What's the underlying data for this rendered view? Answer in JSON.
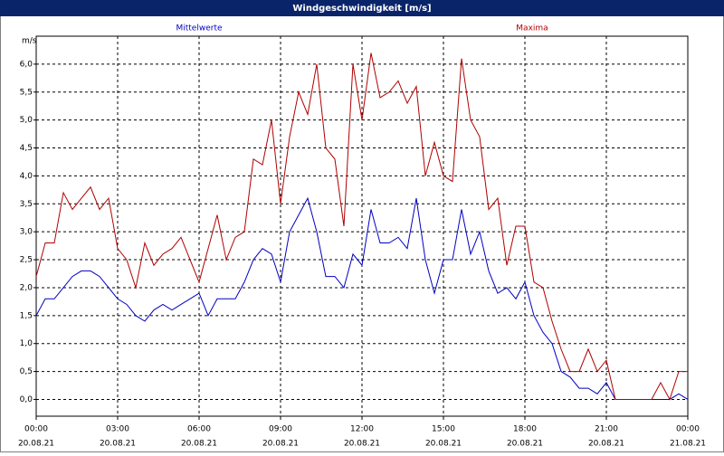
{
  "chart_data": {
    "type": "line",
    "title": "Windgeschwindigkeit [m/s]",
    "y_label": "m/s",
    "x": [
      0,
      20,
      40,
      60,
      80,
      100,
      120,
      140,
      160,
      180,
      200,
      220,
      240,
      260,
      280,
      300,
      320,
      340,
      360,
      380,
      400,
      420,
      440,
      460,
      480,
      500,
      520,
      540,
      560,
      580,
      600,
      620,
      640,
      660,
      680,
      700,
      720,
      740,
      760,
      780,
      800,
      820,
      840,
      860,
      880,
      900,
      920,
      940,
      960,
      980,
      1000,
      1020,
      1040,
      1060,
      1080,
      1100,
      1120,
      1140,
      1160,
      1180,
      1200,
      1220,
      1240,
      1260,
      1280,
      1300,
      1320,
      1340,
      1360,
      1380,
      1400,
      1420,
      1440
    ],
    "series": [
      {
        "name": "Mittelwerte",
        "color": "#0000c0",
        "values": [
          1.5,
          1.8,
          1.8,
          2.0,
          2.2,
          2.3,
          2.3,
          2.2,
          2.0,
          1.8,
          1.7,
          1.5,
          1.4,
          1.6,
          1.7,
          1.6,
          1.7,
          1.8,
          1.9,
          1.5,
          1.8,
          1.8,
          1.8,
          2.1,
          2.5,
          2.7,
          2.6,
          2.1,
          3.0,
          3.3,
          3.6,
          3.0,
          2.2,
          2.2,
          2.0,
          2.6,
          2.4,
          3.4,
          2.8,
          2.8,
          2.9,
          2.7,
          3.6,
          2.5,
          1.9,
          2.5,
          2.5,
          3.4,
          2.6,
          3.0,
          2.3,
          1.9,
          2.0,
          1.8,
          2.1,
          1.5,
          1.2,
          1.0,
          0.5,
          0.4,
          0.2,
          0.2,
          0.1,
          0.3,
          0.0,
          0.0,
          0.0,
          0.0,
          0.0,
          0.0,
          0.0,
          0.1,
          0.0
        ]
      },
      {
        "name": "Maxima",
        "color": "#b00000",
        "values": [
          2.2,
          2.8,
          2.8,
          3.7,
          3.4,
          3.6,
          3.8,
          3.4,
          3.6,
          2.7,
          2.5,
          2.0,
          2.8,
          2.4,
          2.6,
          2.7,
          2.9,
          2.5,
          2.1,
          2.7,
          3.3,
          2.5,
          2.9,
          3.0,
          4.3,
          4.2,
          5.0,
          3.5,
          4.7,
          5.5,
          5.1,
          6.0,
          4.5,
          4.3,
          3.1,
          6.0,
          5.0,
          6.2,
          5.4,
          5.5,
          5.7,
          5.3,
          5.6,
          4.0,
          4.6,
          4.0,
          3.9,
          6.1,
          5.0,
          4.7,
          3.4,
          3.6,
          2.4,
          3.1,
          3.1,
          2.1,
          2.0,
          1.4,
          0.9,
          0.5,
          0.5,
          0.9,
          0.5,
          0.7,
          0.0,
          0.0,
          0.0,
          0.0,
          0.0,
          0.3,
          0.0,
          0.5,
          0.5
        ]
      }
    ],
    "xlim": [
      0,
      1440
    ],
    "ylim": [
      -0.3,
      6.5
    ],
    "xticks": [
      {
        "value": 0,
        "label": "00:00"
      },
      {
        "value": 180,
        "label": "03:00"
      },
      {
        "value": 360,
        "label": "06:00"
      },
      {
        "value": 540,
        "label": "09:00"
      },
      {
        "value": 720,
        "label": "12:00"
      },
      {
        "value": 900,
        "label": "15:00"
      },
      {
        "value": 1080,
        "label": "18:00"
      },
      {
        "value": 1260,
        "label": "21:00"
      },
      {
        "value": 1440,
        "label": "00:00"
      }
    ],
    "xtick_dates": [
      "20.08.21",
      "20.08.21",
      "20.08.21",
      "20.08.21",
      "20.08.21",
      "20.08.21",
      "20.08.21",
      "20.08.21",
      "21.08.21"
    ],
    "yticks": [
      {
        "value": 0,
        "label": "0,0"
      },
      {
        "value": 0.5,
        "label": "0,5"
      },
      {
        "value": 1,
        "label": "1,0"
      },
      {
        "value": 1.5,
        "label": "1,5"
      },
      {
        "value": 2,
        "label": "2,0"
      },
      {
        "value": 2.5,
        "label": "2,5"
      },
      {
        "value": 3,
        "label": "3,0"
      },
      {
        "value": 3.5,
        "label": "3,5"
      },
      {
        "value": 4,
        "label": "4,0"
      },
      {
        "value": 4.5,
        "label": "4,5"
      },
      {
        "value": 5,
        "label": "5,0"
      },
      {
        "value": 5.5,
        "label": "5,5"
      },
      {
        "value": 6,
        "label": "6,0"
      }
    ],
    "grid": true
  }
}
